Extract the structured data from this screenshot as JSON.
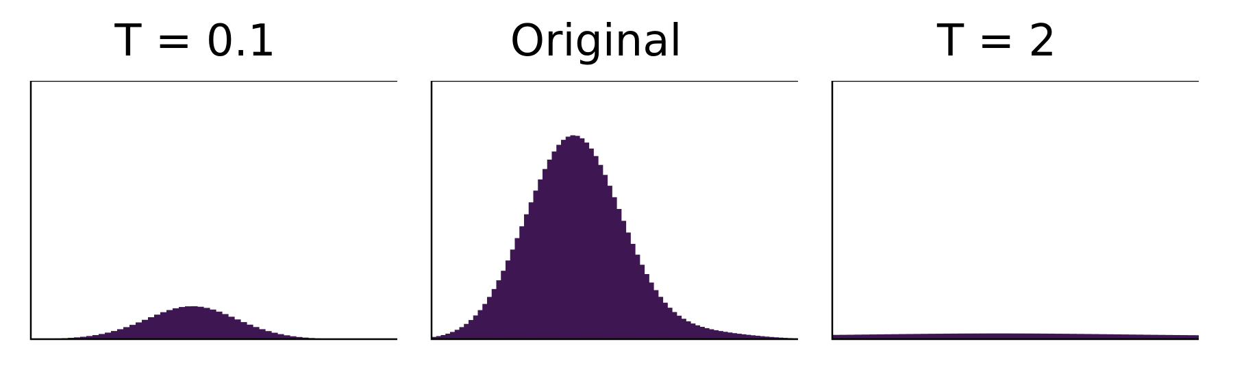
{
  "chart_data": [
    {
      "type": "bar",
      "title": "T = 0.1",
      "xlabel": "",
      "ylabel": "",
      "ylim": [
        0,
        1.0
      ],
      "grid": false,
      "color": "#3e1651",
      "values": [
        0.0007,
        0.001,
        0.0014,
        0.002,
        0.0028,
        0.0038,
        0.0052,
        0.007,
        0.0093,
        0.0122,
        0.0158,
        0.0201,
        0.0253,
        0.0315,
        0.0386,
        0.0466,
        0.0554,
        0.0649,
        0.0749,
        0.085,
        0.095,
        0.1044,
        0.1127,
        0.1195,
        0.1245,
        0.1272,
        0.1276,
        0.1255,
        0.1211,
        0.1147,
        0.1066,
        0.0971,
        0.0869,
        0.0764,
        0.0661,
        0.0562,
        0.047,
        0.0387,
        0.0313,
        0.0249,
        0.0195,
        0.015,
        0.0113,
        0.0084,
        0.0061,
        0.0044,
        0.003,
        0.0021,
        0.0014,
        0.0009,
        0.0006,
        0.0004,
        0.0002,
        0.0001,
        0.0001,
        0.0001,
        0.0,
        0.0,
        0.0,
        0.0
      ]
    },
    {
      "type": "bar",
      "title": "Original",
      "xlabel": "",
      "ylabel": "",
      "ylim": [
        0,
        1.0
      ],
      "grid": false,
      "color": "#3e1651",
      "values": [
        0.0087,
        0.0119,
        0.016,
        0.0213,
        0.028,
        0.0363,
        0.0466,
        0.0591,
        0.0741,
        0.0918,
        0.1125,
        0.1364,
        0.1635,
        0.1941,
        0.2279,
        0.2648,
        0.3046,
        0.3469,
        0.3912,
        0.437,
        0.4835,
        0.5298,
        0.5751,
        0.6184,
        0.6587,
        0.6951,
        0.7265,
        0.7523,
        0.7716,
        0.784,
        0.7892,
        0.7871,
        0.7776,
        0.7611,
        0.738,
        0.7089,
        0.6746,
        0.6359,
        0.5939,
        0.5496,
        0.504,
        0.4581,
        0.4128,
        0.369,
        0.3272,
        0.2881,
        0.252,
        0.2192,
        0.1898,
        0.1638,
        0.1412,
        0.1217,
        0.105,
        0.0909,
        0.079,
        0.069,
        0.0606,
        0.0536,
        0.0477,
        0.0427,
        0.0384,
        0.0347,
        0.0314,
        0.0285,
        0.0258,
        0.0233,
        0.021,
        0.0189,
        0.0169,
        0.015,
        0.0132,
        0.0115,
        0.0099,
        0.0085,
        0.0072,
        0.006,
        0.005,
        0.0041,
        0.0033,
        0.0026
      ]
    },
    {
      "type": "bar",
      "title": "T = 2",
      "xlabel": "",
      "ylabel": "",
      "ylim": [
        0,
        1.0
      ],
      "grid": false,
      "color": "#3e1651",
      "values": [
        0.0166,
        0.0169,
        0.0172,
        0.0176,
        0.0179,
        0.0183,
        0.0186,
        0.019,
        0.0193,
        0.0197,
        0.02,
        0.0203,
        0.0206,
        0.0209,
        0.0211,
        0.0214,
        0.0216,
        0.0218,
        0.0219,
        0.022,
        0.0221,
        0.0222,
        0.0222,
        0.0222,
        0.0221,
        0.022,
        0.0219,
        0.0218,
        0.0216,
        0.0214,
        0.0211,
        0.0209,
        0.0206,
        0.0203,
        0.02,
        0.0197,
        0.0193,
        0.019,
        0.0186,
        0.0183,
        0.0179,
        0.0176,
        0.0172,
        0.0169,
        0.0166,
        0.0163,
        0.016,
        0.0157,
        0.0154,
        0.0152
      ]
    }
  ]
}
